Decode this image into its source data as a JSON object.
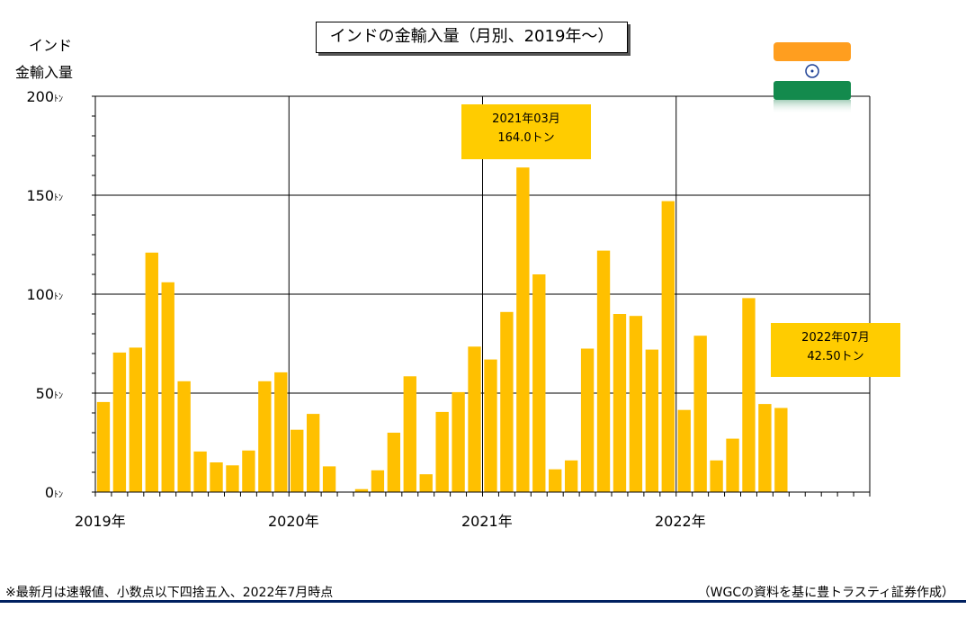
{
  "chart_data": {
    "type": "bar",
    "title": "インドの金輸入量（月別、2019年～）",
    "ylabel_lines": [
      "インド",
      "金輸入量"
    ],
    "ylim": [
      0,
      200
    ],
    "unit": "ﾄﾝ",
    "yticks": [
      0,
      50,
      100,
      150,
      200
    ],
    "year_labels": [
      "2019年",
      "2020年",
      "2021年",
      "2022年"
    ],
    "grid": true,
    "bar_color": "#FFC000",
    "total_months": 48,
    "values": [
      45.5,
      70.5,
      73,
      121,
      106,
      56,
      20.5,
      15,
      13.5,
      21,
      56,
      60.5,
      31.5,
      39.5,
      13,
      0,
      1.5,
      11,
      30,
      58.5,
      9,
      40.5,
      50.5,
      73.5,
      67,
      91,
      164,
      110,
      11.5,
      16,
      72.5,
      122,
      90,
      89,
      72,
      147,
      41.5,
      79,
      16,
      27,
      98,
      44.5,
      42.5
    ],
    "annotations": [
      {
        "line1": "2021年03月",
        "line2": "164.0トン"
      },
      {
        "line1": "2022年07月",
        "line2": "42.50トン"
      }
    ]
  },
  "flag_icon": "india-flag",
  "footnote": "※最新月は速報値、小数点以下四捨五入、2022年7月時点",
  "source": "（WGCの資料を基に豊トラスティ証券作成）",
  "colors": {
    "footer_line": "#002060",
    "callout": "#FFCC00"
  }
}
